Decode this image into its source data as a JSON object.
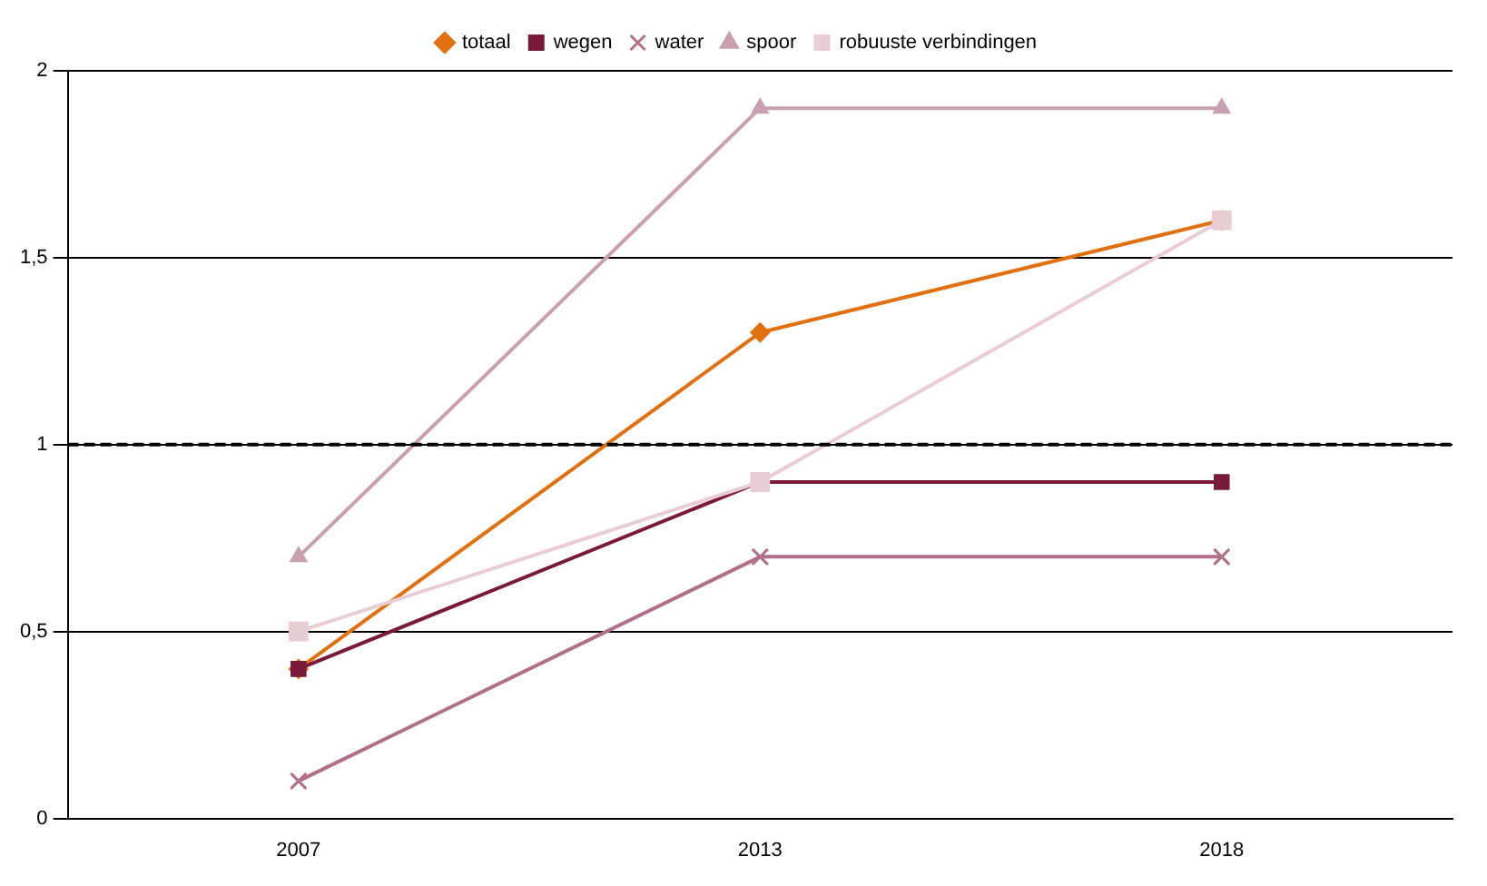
{
  "chart_data": {
    "type": "line",
    "categories": [
      "2007",
      "2013",
      "2018"
    ],
    "series": [
      {
        "name": "totaal",
        "color": "#e07010",
        "marker": "diamond",
        "values": [
          0.4,
          1.3,
          1.6
        ]
      },
      {
        "name": "wegen",
        "color": "#7a1a3a",
        "marker": "square",
        "values": [
          0.4,
          0.9,
          0.9
        ]
      },
      {
        "name": "water",
        "color": "#b07088",
        "marker": "cross",
        "values": [
          0.1,
          0.7,
          0.7
        ]
      },
      {
        "name": "spoor",
        "color": "#c8a0b0",
        "marker": "triangle",
        "values": [
          0.7,
          1.9,
          1.9
        ]
      },
      {
        "name": "robuuste verbindingen",
        "color": "#e8cdd5",
        "marker": "square",
        "values": [
          0.5,
          0.9,
          1.6
        ]
      }
    ],
    "ylim": [
      0,
      2
    ],
    "yticks": [
      0,
      {
        "value": 0.5,
        "label": "0,5"
      },
      1,
      {
        "value": 1.5,
        "label": "1,5"
      },
      2
    ],
    "grid": "y",
    "legend": "top",
    "line_style": "solid",
    "ref_lines": [
      {
        "axis": "y",
        "value": 1,
        "color": "#000000",
        "line_style": "dashed"
      }
    ]
  }
}
